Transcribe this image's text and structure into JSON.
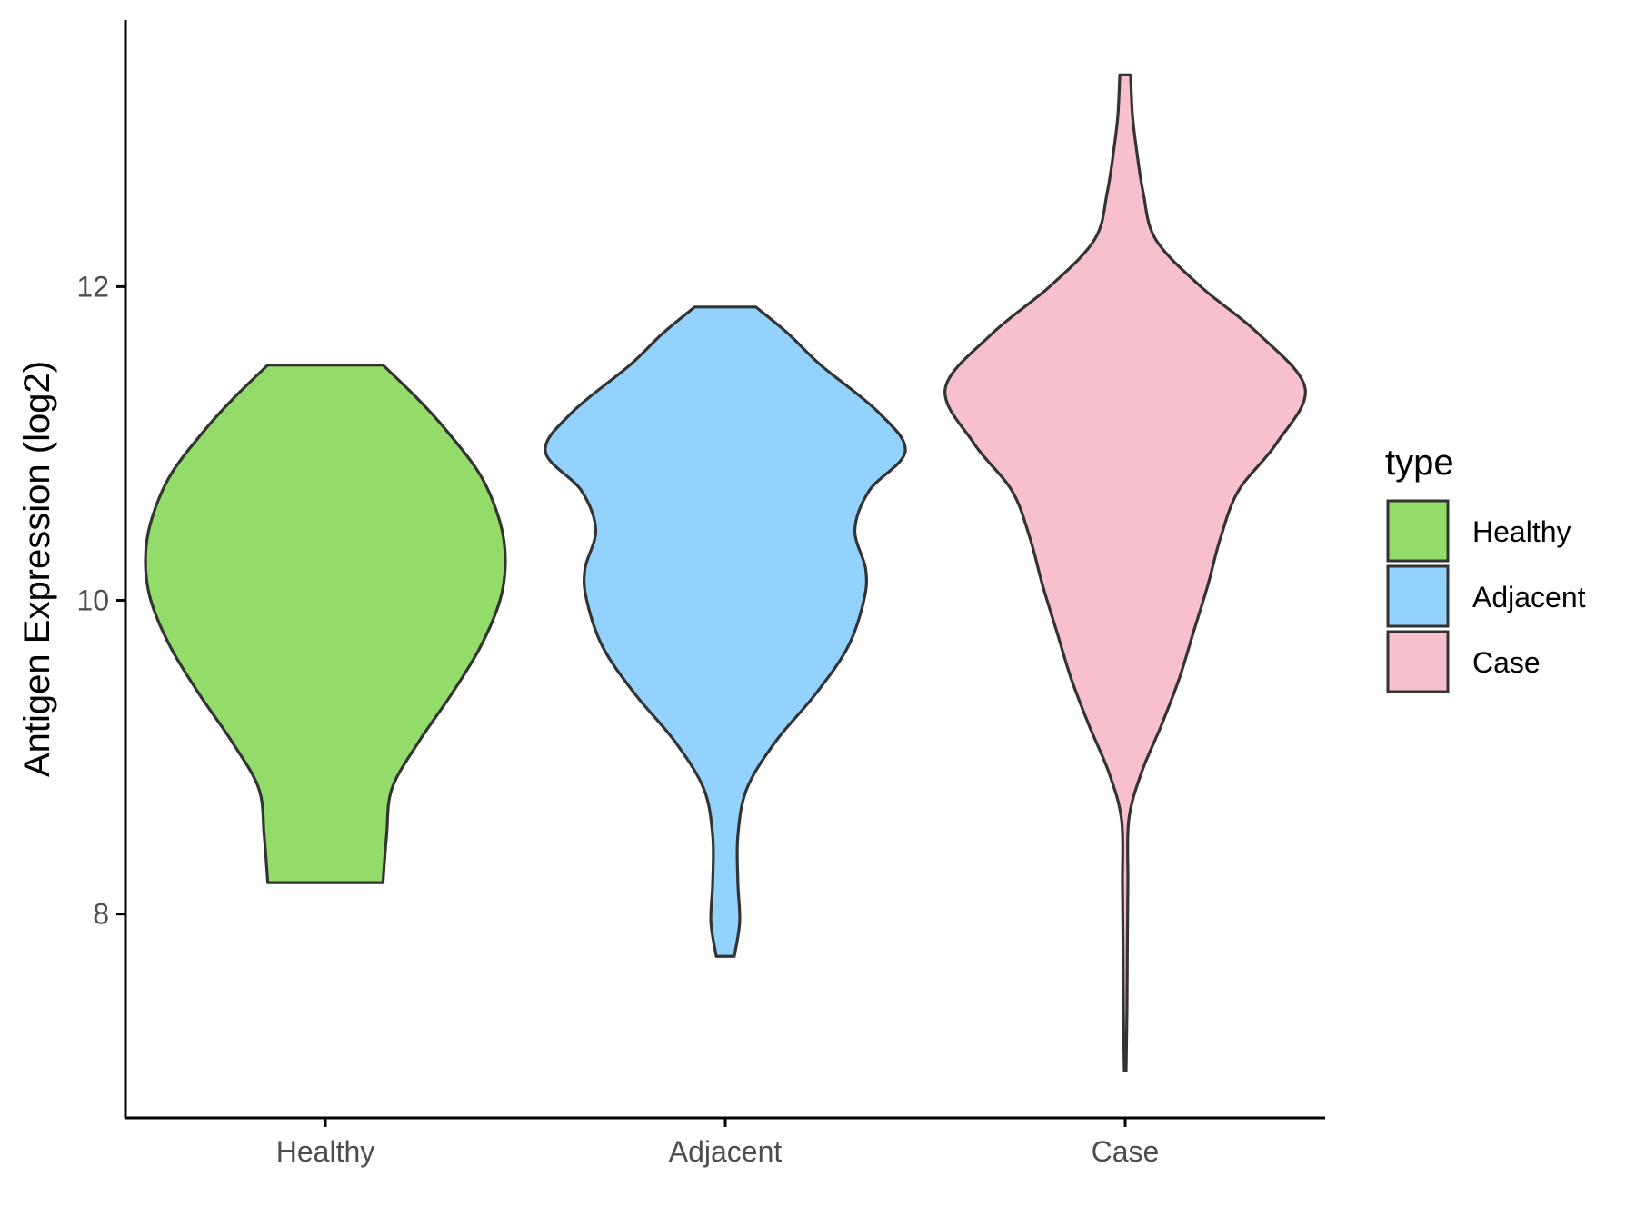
{
  "chart_data": {
    "type": "violin",
    "xlabel": "",
    "ylabel": "Antigen Expression (log2)",
    "ylim": [
      6.7,
      13.7
    ],
    "yticks": [
      8,
      10,
      12
    ],
    "categories": [
      "Healthy",
      "Adjacent",
      "Case"
    ],
    "grid": false,
    "legend": {
      "title": "type",
      "placement": "right",
      "entries": [
        {
          "label": "Healthy",
          "color": "#93dc6a"
        },
        {
          "label": "Adjacent",
          "color": "#93d2fd"
        },
        {
          "label": "Case",
          "color": "#f7c0cc"
        }
      ]
    },
    "series": [
      {
        "name": "Healthy",
        "color": "#93dc6a",
        "min": 8.2,
        "max": 11.5,
        "density": [
          [
            8.2,
            0.32
          ],
          [
            8.5,
            0.34
          ],
          [
            8.8,
            0.37
          ],
          [
            9.1,
            0.52
          ],
          [
            9.4,
            0.7
          ],
          [
            9.7,
            0.86
          ],
          [
            10.0,
            0.97
          ],
          [
            10.25,
            1.0
          ],
          [
            10.5,
            0.97
          ],
          [
            10.8,
            0.86
          ],
          [
            11.1,
            0.66
          ],
          [
            11.3,
            0.5
          ],
          [
            11.5,
            0.32
          ]
        ]
      },
      {
        "name": "Adjacent",
        "color": "#93d2fd",
        "min": 7.73,
        "max": 11.87,
        "density": [
          [
            7.73,
            0.05
          ],
          [
            7.95,
            0.08
          ],
          [
            8.2,
            0.07
          ],
          [
            8.5,
            0.07
          ],
          [
            8.8,
            0.12
          ],
          [
            9.1,
            0.28
          ],
          [
            9.4,
            0.5
          ],
          [
            9.7,
            0.68
          ],
          [
            10.0,
            0.77
          ],
          [
            10.2,
            0.78
          ],
          [
            10.45,
            0.72
          ],
          [
            10.7,
            0.8
          ],
          [
            10.95,
            1.0
          ],
          [
            11.2,
            0.85
          ],
          [
            11.5,
            0.53
          ],
          [
            11.7,
            0.35
          ],
          [
            11.87,
            0.17
          ]
        ]
      },
      {
        "name": "Case",
        "color": "#f7c0cc",
        "min": 7.0,
        "max": 13.35,
        "density": [
          [
            7.0,
            0.005
          ],
          [
            7.4,
            0.01
          ],
          [
            7.8,
            0.012
          ],
          [
            8.2,
            0.015
          ],
          [
            8.6,
            0.02
          ],
          [
            8.9,
            0.09
          ],
          [
            9.2,
            0.2
          ],
          [
            9.5,
            0.3
          ],
          [
            9.8,
            0.38
          ],
          [
            10.1,
            0.46
          ],
          [
            10.4,
            0.53
          ],
          [
            10.7,
            0.63
          ],
          [
            11.0,
            0.84
          ],
          [
            11.35,
            1.0
          ],
          [
            11.7,
            0.74
          ],
          [
            12.0,
            0.42
          ],
          [
            12.3,
            0.17
          ],
          [
            12.6,
            0.1
          ],
          [
            12.9,
            0.06
          ],
          [
            13.1,
            0.04
          ],
          [
            13.35,
            0.03
          ]
        ]
      }
    ]
  }
}
